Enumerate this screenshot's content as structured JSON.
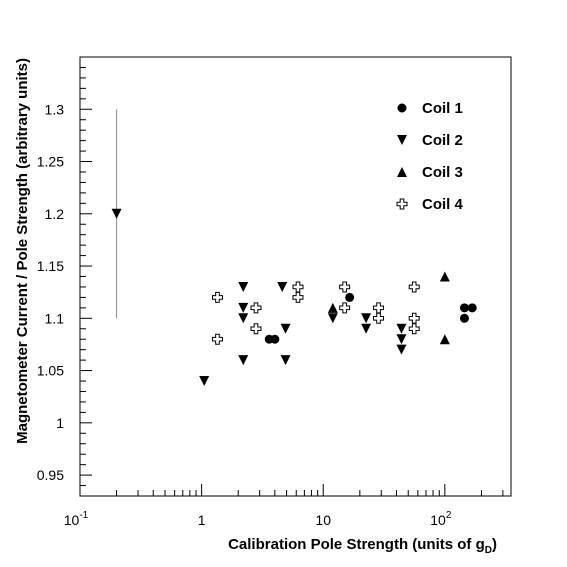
{
  "chart_data": {
    "type": "scatter",
    "xlabel": "Calibration Pole Strength (units of g",
    "xlabel_sub": "D",
    "xlabel_close": ")",
    "ylabel": "Magnetometer Current / Pole Strength (arbitrary units)",
    "x_scale": "log",
    "xlim": [
      0.1,
      350
    ],
    "ylim": [
      0.93,
      1.35
    ],
    "grid": false,
    "legend_position": "top-right",
    "x_ticks": [
      {
        "value": 0.1,
        "label": "10",
        "sup": "-1"
      },
      {
        "value": 1,
        "label": "1",
        "sup": ""
      },
      {
        "value": 10,
        "label": "10",
        "sup": ""
      },
      {
        "value": 100,
        "label": "10",
        "sup": "2"
      }
    ],
    "y_ticks": [
      {
        "value": 0.95,
        "label": "0.95"
      },
      {
        "value": 1.0,
        "label": "1"
      },
      {
        "value": 1.05,
        "label": "1.05"
      },
      {
        "value": 1.1,
        "label": "1.1"
      },
      {
        "value": 1.15,
        "label": "1.15"
      },
      {
        "value": 1.2,
        "label": "1.2"
      },
      {
        "value": 1.25,
        "label": "1.25"
      },
      {
        "value": 1.3,
        "label": "1.3"
      }
    ],
    "series": [
      {
        "name": "Coil 1",
        "marker": "circle",
        "points": [
          [
            3.6,
            1.08
          ],
          [
            4.0,
            1.08
          ],
          [
            16.5,
            1.12
          ],
          [
            145,
            1.1
          ],
          [
            145,
            1.11
          ],
          [
            168,
            1.11
          ]
        ]
      },
      {
        "name": "Coil 2",
        "marker": "triangle-down",
        "points": [
          [
            0.2,
            1.2
          ],
          [
            1.05,
            1.04
          ],
          [
            2.2,
            1.13
          ],
          [
            2.2,
            1.11
          ],
          [
            2.2,
            1.1
          ],
          [
            2.2,
            1.06
          ],
          [
            4.6,
            1.13
          ],
          [
            4.9,
            1.09
          ],
          [
            4.9,
            1.06
          ],
          [
            12.0,
            1.1
          ],
          [
            22.5,
            1.1
          ],
          [
            22.5,
            1.09
          ],
          [
            44.0,
            1.09
          ],
          [
            44.0,
            1.08
          ],
          [
            44.0,
            1.07
          ]
        ]
      },
      {
        "name": "Coil 3",
        "marker": "triangle-up",
        "points": [
          [
            12.0,
            1.11
          ],
          [
            100,
            1.14
          ],
          [
            100,
            1.08
          ]
        ]
      },
      {
        "name": "Coil 4",
        "marker": "cross-open",
        "points": [
          [
            1.35,
            1.12
          ],
          [
            1.35,
            1.08
          ],
          [
            2.8,
            1.11
          ],
          [
            2.8,
            1.09
          ],
          [
            6.2,
            1.13
          ],
          [
            6.2,
            1.12
          ],
          [
            15.0,
            1.13
          ],
          [
            15.0,
            1.11
          ],
          [
            28.5,
            1.11
          ],
          [
            28.5,
            1.1
          ],
          [
            56.0,
            1.13
          ],
          [
            56.0,
            1.1
          ],
          [
            56.0,
            1.09
          ]
        ]
      }
    ],
    "error_bars": [
      {
        "x": 0.2,
        "y_low": 1.1,
        "y_high": 1.3
      }
    ]
  }
}
